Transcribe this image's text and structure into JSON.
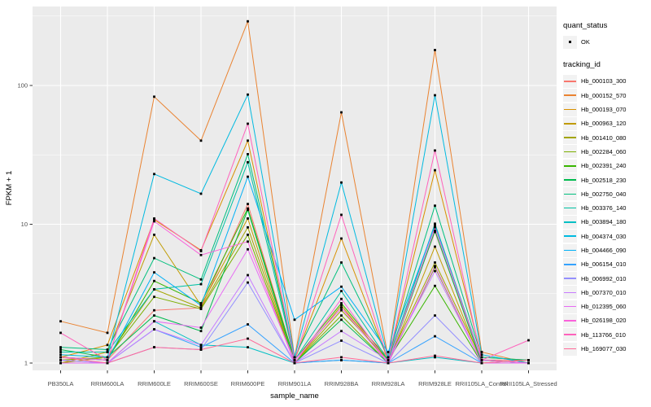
{
  "chart_data": {
    "type": "line",
    "title": "",
    "xlabel": "sample_name",
    "ylabel": "FPKM + 1",
    "y_scale": "log10",
    "y_ticks": [
      "1",
      "10",
      "100"
    ],
    "y_tick_values": [
      1,
      10,
      100
    ],
    "y_minor_values": [
      3.162,
      31.62,
      316.2
    ],
    "ylim": [
      0.885,
      371
    ],
    "grid": true,
    "panel_bg": "#EBEBEB",
    "grid_color": "#FFFFFF",
    "axis_text_color": "#4D4D4D",
    "tick_color": "#333333",
    "point_color": "#000000",
    "legend_position": "right",
    "categories": [
      "PB350LA",
      "RRIM600LA",
      "RRIM600LE",
      "RRIM600SE",
      "RRIM600PE",
      "RRIM901LA",
      "RRIM928BA",
      "RRIM928LA",
      "RRIM928LE",
      "RRII105LA_Control",
      "RRII105LA_Stressed"
    ],
    "legend": {
      "quant_status": {
        "title": "quant_status",
        "items": [
          {
            "label": "OK",
            "marker": "black-point"
          }
        ]
      },
      "tracking_id": {
        "title": "tracking_id"
      }
    },
    "series": [
      {
        "name": "Hb_000103_300",
        "color": "#F8766D",
        "values": [
          1.1,
          1.05,
          2.4,
          2.5,
          14.0,
          1.05,
          2.5,
          1.1,
          8.8,
          1.05,
          1.05
        ]
      },
      {
        "name": "Hb_000152_570",
        "color": "#EA8331",
        "values": [
          2.0,
          1.65,
          83.0,
          40.0,
          290.0,
          1.1,
          64.0,
          1.1,
          180.0,
          1.2,
          1.0
        ]
      },
      {
        "name": "Hb_000193_070",
        "color": "#D89000",
        "values": [
          1.1,
          1.35,
          10.8,
          6.5,
          40.0,
          1.05,
          7.9,
          1.05,
          24.5,
          1.1,
          1.05
        ]
      },
      {
        "name": "Hb_000963_120",
        "color": "#C09B00",
        "values": [
          1.0,
          1.2,
          8.4,
          2.6,
          11.0,
          1.0,
          2.6,
          1.0,
          6.9,
          1.0,
          1.0
        ]
      },
      {
        "name": "Hb_001410_080",
        "color": "#A3A500",
        "values": [
          1.0,
          1.1,
          3.4,
          2.5,
          9.5,
          1.0,
          2.4,
          1.05,
          5.3,
          1.05,
          1.0
        ]
      },
      {
        "name": "Hb_002284_060",
        "color": "#7CAE00",
        "values": [
          1.05,
          1.1,
          3.0,
          2.45,
          8.4,
          1.0,
          2.2,
          1.0,
          4.9,
          1.0,
          1.0
        ]
      },
      {
        "name": "Hb_002391_240",
        "color": "#39B600",
        "values": [
          1.1,
          1.05,
          3.9,
          2.7,
          13.0,
          1.05,
          2.7,
          1.05,
          3.6,
          1.0,
          1.05
        ]
      },
      {
        "name": "Hb_002518_230",
        "color": "#00BB4E",
        "values": [
          1.25,
          1.1,
          2.2,
          1.7,
          12.7,
          1.0,
          2.05,
          1.0,
          9.0,
          1.0,
          1.0
        ]
      },
      {
        "name": "Hb_002750_040",
        "color": "#00BF7D",
        "values": [
          1.3,
          1.25,
          5.7,
          4.0,
          32.0,
          1.1,
          5.3,
          1.1,
          13.6,
          1.1,
          1.05
        ]
      },
      {
        "name": "Hb_003376_140",
        "color": "#00C1A3",
        "values": [
          1.2,
          1.2,
          3.4,
          3.7,
          28.0,
          1.05,
          3.3,
          1.05,
          10.1,
          1.05,
          1.0
        ]
      },
      {
        "name": "Hb_003894_180",
        "color": "#00BFC4",
        "values": [
          1.05,
          1.0,
          2.0,
          1.35,
          1.3,
          1.0,
          1.05,
          1.0,
          1.1,
          1.0,
          1.0
        ]
      },
      {
        "name": "Hb_004374_030",
        "color": "#00BAE0",
        "values": [
          1.15,
          1.1,
          23.0,
          16.6,
          86.0,
          1.1,
          20.0,
          1.1,
          85.0,
          1.15,
          1.0
        ]
      },
      {
        "name": "Hb_004466_090",
        "color": "#00B0F6",
        "values": [
          1.1,
          1.05,
          4.5,
          2.6,
          22.0,
          2.05,
          3.55,
          1.2,
          9.8,
          1.05,
          1.0
        ]
      },
      {
        "name": "Hb_006154_010",
        "color": "#35A2FF",
        "values": [
          1.0,
          1.0,
          1.75,
          1.3,
          1.9,
          1.0,
          1.05,
          1.0,
          1.56,
          1.0,
          1.0
        ]
      },
      {
        "name": "Hb_006992_010",
        "color": "#9590FF",
        "values": [
          1.0,
          1.0,
          1.3,
          1.25,
          3.8,
          1.0,
          1.45,
          1.0,
          2.2,
          1.0,
          1.0
        ]
      },
      {
        "name": "Hb_007370_010",
        "color": "#C77CFF",
        "values": [
          1.05,
          1.0,
          1.75,
          1.35,
          4.3,
          1.0,
          1.7,
          1.05,
          4.6,
          1.0,
          1.0
        ]
      },
      {
        "name": "Hb_012395_060",
        "color": "#E76BF3",
        "values": [
          1.0,
          1.0,
          2.0,
          1.8,
          6.6,
          1.05,
          2.5,
          1.0,
          5.0,
          1.0,
          1.0
        ]
      },
      {
        "name": "Hb_026198_020",
        "color": "#FA62DB",
        "values": [
          1.1,
          1.05,
          10.5,
          6.0,
          7.5,
          1.0,
          2.9,
          1.0,
          9.5,
          1.05,
          1.0
        ]
      },
      {
        "name": "Hb_113766_010",
        "color": "#FF62BC",
        "values": [
          1.65,
          1.05,
          11.0,
          6.4,
          53.0,
          1.05,
          11.7,
          1.05,
          34.0,
          1.05,
          1.46
        ]
      },
      {
        "name": "Hb_169077_030",
        "color": "#FF6A98",
        "values": [
          1.1,
          1.0,
          1.3,
          1.25,
          1.5,
          1.0,
          1.1,
          1.0,
          1.13,
          1.0,
          1.05
        ]
      }
    ]
  }
}
